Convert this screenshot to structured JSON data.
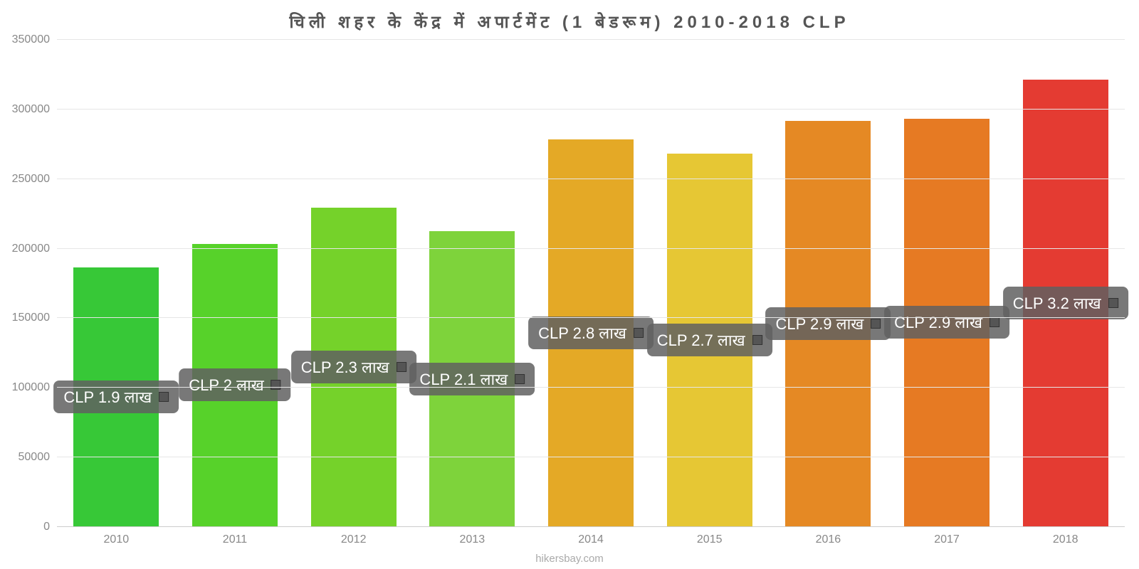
{
  "chart": {
    "type": "bar",
    "title": "चिली शहर के केंद्र में अपार्टमेंट (1 बेडरूम) 2010-2018 CLP",
    "title_fontsize": 24,
    "title_color": "#555555",
    "ylim": [
      0,
      350000
    ],
    "ytick_step": 50000,
    "yticks": [
      0,
      50000,
      100000,
      150000,
      200000,
      250000,
      300000,
      350000
    ],
    "background_color": "#ffffff",
    "gridline_color": "#e6e6e6",
    "baseline_color": "#cccccc",
    "bar_width_pct": 72,
    "label_fontsize": 16,
    "label_color": "#888888",
    "value_badge_bg": "rgba(96,96,96,0.85)",
    "value_badge_text_color": "#ffffff",
    "value_badge_fontsize": 22,
    "attribution": "hikersbay.com",
    "categories": [
      "2010",
      "2011",
      "2012",
      "2013",
      "2014",
      "2015",
      "2016",
      "2017",
      "2018"
    ],
    "values": [
      186000,
      203000,
      229000,
      212000,
      278000,
      268000,
      291000,
      293000,
      321000
    ],
    "value_labels": [
      "CLP 1.9 लाख",
      "CLP 2 लाख",
      "CLP 2.3 लाख",
      "CLP 2.1 लाख",
      "CLP 2.8 लाख",
      "CLP 2.7 लाख",
      "CLP 2.9 लाख",
      "CLP 2.9 लाख",
      "CLP 3.2 लाख"
    ],
    "bar_colors": [
      "#37c837",
      "#57d22a",
      "#75d22a",
      "#7ed33b",
      "#e4a926",
      "#e6c734",
      "#e58924",
      "#e67a23",
      "#e43b32"
    ]
  }
}
